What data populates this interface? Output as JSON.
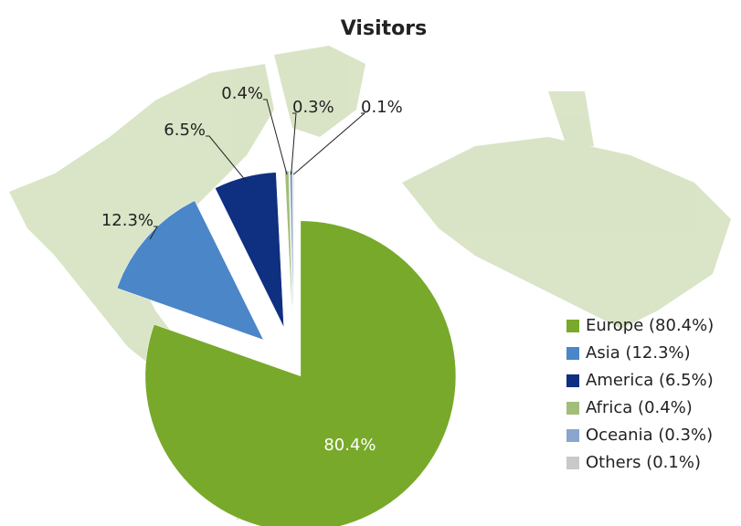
{
  "chart_data": {
    "type": "pie",
    "title": "Visitors",
    "categories": [
      "Europe (80.4%)",
      "Asia (12.3%)",
      "America (6.5%)",
      "Africa (0.4%)",
      "Oceania (0.3%)",
      "Others (0.1%)"
    ],
    "values": [
      80.4,
      12.3,
      6.5,
      0.4,
      0.3,
      0.1
    ],
    "value_labels": [
      "80.4%",
      "12.3%",
      "6.5%",
      "0.4%",
      "0.3%",
      "0.1%"
    ],
    "colors": [
      "#78a92a",
      "#4a86c8",
      "#0f2f80",
      "#a3bd7a",
      "#8ba6cc",
      "#c9c9c9"
    ],
    "legend": "right"
  }
}
